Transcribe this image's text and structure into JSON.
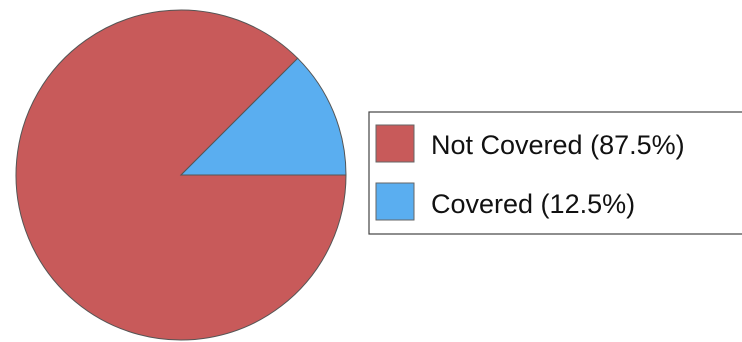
{
  "chart_data": {
    "type": "pie",
    "title": "",
    "slices": [
      {
        "label": "Not Covered (87.5%)",
        "value": 87.5,
        "color": "#c85a5a"
      },
      {
        "label": "Covered (12.5%)",
        "value": 12.5,
        "color": "#5aaef0"
      }
    ],
    "start_angle_deg": 0,
    "direction": "clockwise",
    "legend_position": "right",
    "slice_outline_color": "#555555",
    "legend_border_color": "#444444"
  }
}
